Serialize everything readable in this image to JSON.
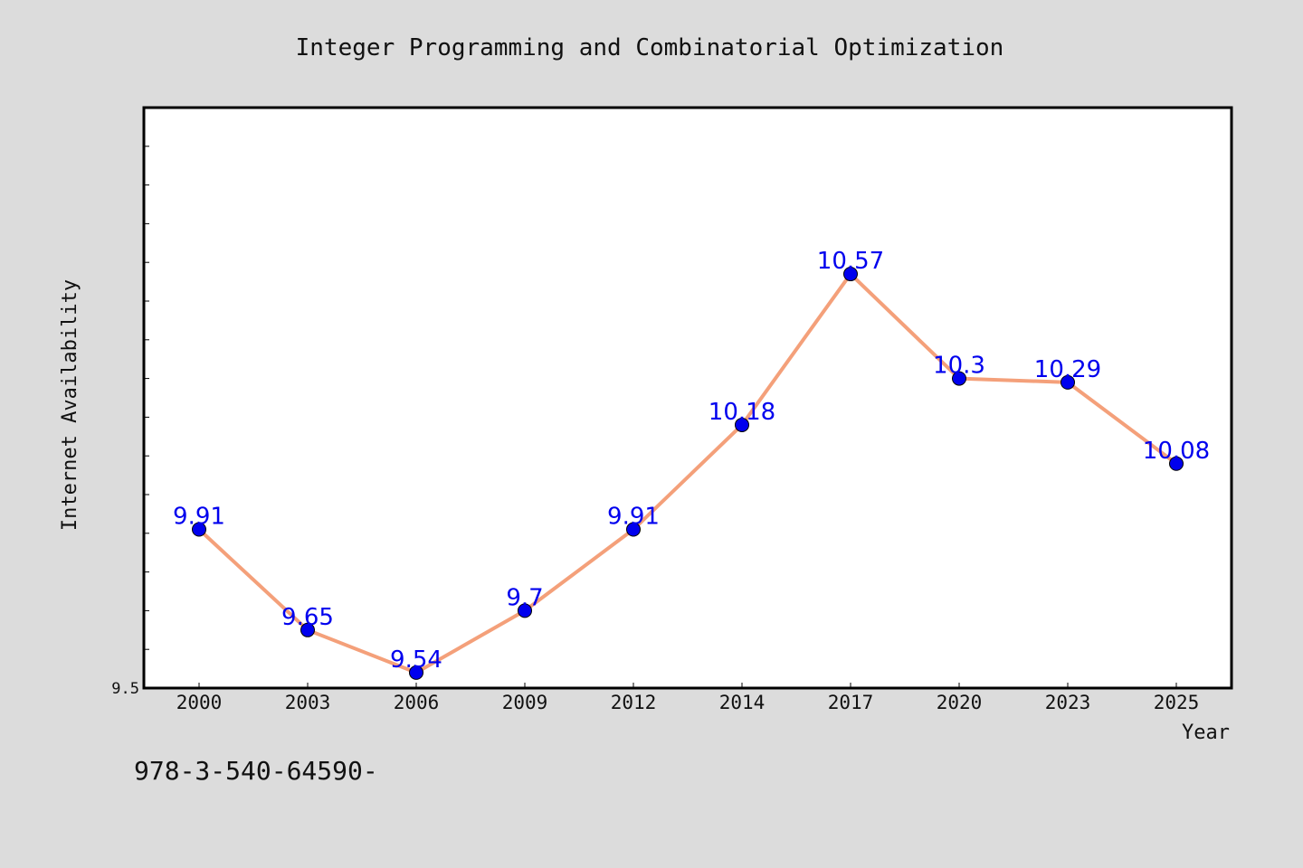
{
  "chart_data": {
    "type": "line",
    "title": "Integer Programming and Combinatorial Optimization",
    "xlabel": "Year",
    "ylabel": "Internet Availability",
    "categories": [
      "2000",
      "2003",
      "2006",
      "2009",
      "2012",
      "2014",
      "2017",
      "2020",
      "2023",
      "2025"
    ],
    "series": [
      {
        "values": [
          9.91,
          9.65,
          9.54,
          9.7,
          9.91,
          10.18,
          10.57,
          10.3,
          10.29,
          10.08
        ]
      }
    ],
    "data_labels": [
      "9.91",
      "9.65",
      "9.54",
      "9.7",
      "9.91",
      "10.18",
      "10.57",
      "10.3",
      "10.29",
      "10.08"
    ],
    "ylim": [
      9.5,
      11.0
    ],
    "y_tick_labels": [
      "9.5"
    ],
    "grid": false,
    "legend": "none",
    "colors": {
      "background": "#dcdcdc",
      "plot_background": "#ffffff",
      "line": "#f4a07a",
      "marker": "#0000ee",
      "data_label": "#0000ee"
    }
  },
  "footer": {
    "isbn": "978-3-540-64590-"
  }
}
